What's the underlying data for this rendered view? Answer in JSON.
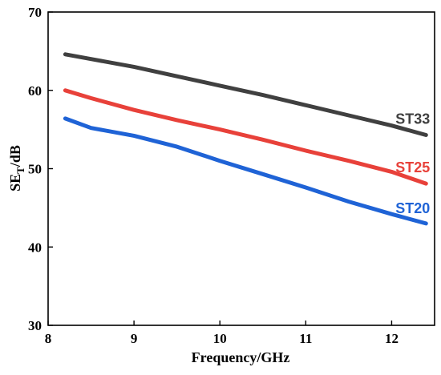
{
  "chart_data": {
    "type": "line",
    "title": "",
    "xlabel": "Frequency/GHz",
    "ylabel": {
      "base": "SE",
      "subscript": "T",
      "suffix": "/dB"
    },
    "xlim": [
      8,
      12.5
    ],
    "ylim": [
      30,
      70
    ],
    "xticks": [
      8,
      9,
      10,
      11,
      12
    ],
    "yticks": [
      30,
      40,
      50,
      60,
      70
    ],
    "grid": false,
    "legend": "none",
    "series": [
      {
        "name": "ST33",
        "color": "#404040",
        "x": [
          8.2,
          8.5,
          9.0,
          9.5,
          10.0,
          10.5,
          11.0,
          11.5,
          12.0,
          12.4
        ],
        "y": [
          64.6,
          64.0,
          63.0,
          61.8,
          60.6,
          59.4,
          58.1,
          56.8,
          55.5,
          54.3
        ]
      },
      {
        "name": "ST25",
        "color": "#e8413a",
        "x": [
          8.2,
          8.5,
          9.0,
          9.5,
          10.0,
          10.5,
          11.0,
          11.5,
          12.0,
          12.4
        ],
        "y": [
          60.0,
          59.0,
          57.5,
          56.2,
          55.0,
          53.7,
          52.3,
          51.0,
          49.6,
          48.1
        ]
      },
      {
        "name": "ST20",
        "color": "#1f63d6",
        "x": [
          8.2,
          8.5,
          9.0,
          9.5,
          10.0,
          10.5,
          11.0,
          11.5,
          12.0,
          12.4
        ],
        "y": [
          56.4,
          55.2,
          54.2,
          52.8,
          51.0,
          49.3,
          47.6,
          45.8,
          44.2,
          43.0
        ]
      }
    ]
  }
}
